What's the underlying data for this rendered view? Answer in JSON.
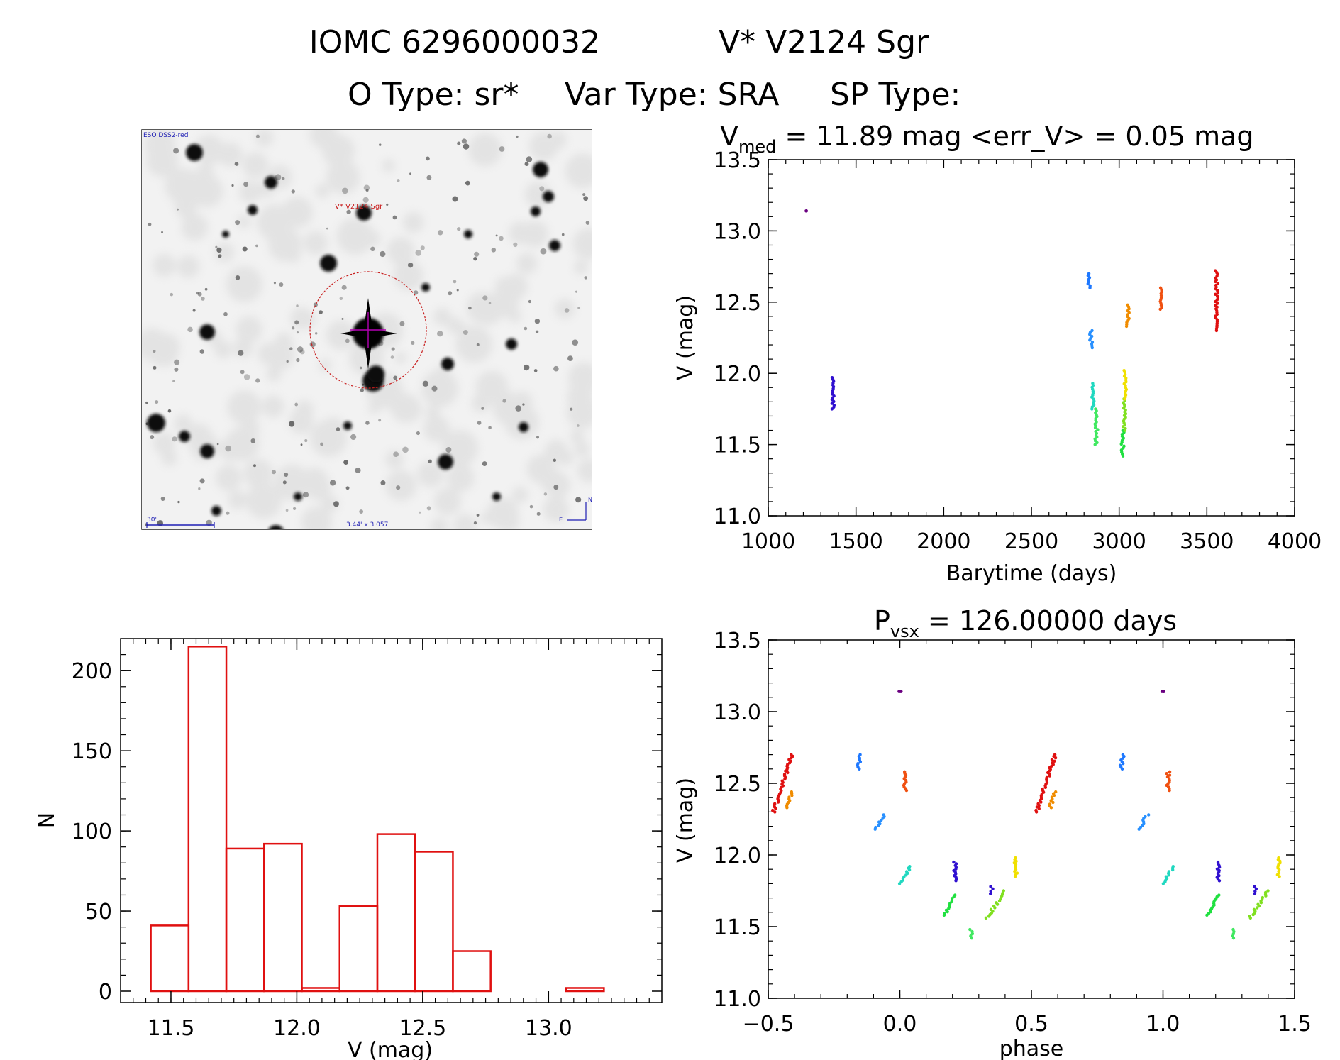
{
  "header": {
    "line1_id": "IOMC 6296000032",
    "line1_name": "V* V2124 Sgr",
    "line2_otype": "O Type: sr*",
    "line2_vartype": "Var Type: SRA",
    "line2_sptype": "SP Type:"
  },
  "finder": {
    "survey_label": "ESO DSS2-red",
    "target_label": "V* V2124 Sgr",
    "scale_label": "30\"",
    "fov_label": "3.44' x 3.057'",
    "north_label": "N",
    "east_label": "E",
    "colors": {
      "circle": "#c81e1e",
      "crosshair": "#b400b4",
      "labels": "#1e1eb4"
    }
  },
  "chart_data": [
    {
      "id": "light_curve",
      "type": "scatter",
      "title_main": "V",
      "title_sub": "med",
      "title_rest": " = 11.89 mag <err_V> = 0.05 mag",
      "xlabel": "Barytime (days)",
      "ylabel": "V (mag)",
      "xlim": [
        1000,
        4000
      ],
      "ylim": [
        13.5,
        11.0
      ],
      "y_inverted": true,
      "x_ticks": [
        1000,
        1500,
        2000,
        2500,
        3000,
        3500,
        4000
      ],
      "y_ticks": [
        "11.0",
        "11.5",
        "12.0",
        "12.5",
        "13.0",
        "13.5"
      ],
      "groups": [
        {
          "color": "#6a0080",
          "x": 1220,
          "y": [
            13.14,
            13.14
          ]
        },
        {
          "color": "#3010d0",
          "x": 1370,
          "y": [
            11.75,
            11.97
          ]
        },
        {
          "color": "#1e78ff",
          "x": 2830,
          "y": [
            12.6,
            12.7
          ]
        },
        {
          "color": "#2890ff",
          "x": 2840,
          "y": [
            12.18,
            12.3
          ]
        },
        {
          "color": "#20d8c0",
          "x": 2850,
          "y": [
            11.75,
            11.93
          ]
        },
        {
          "color": "#40e860",
          "x": 2870,
          "y": [
            11.5,
            11.75
          ]
        },
        {
          "color": "#20e040",
          "x": 3020,
          "y": [
            11.42,
            11.6
          ]
        },
        {
          "color": "#80e020",
          "x": 3030,
          "y": [
            11.6,
            11.82
          ]
        },
        {
          "color": "#f0e000",
          "x": 3035,
          "y": [
            11.82,
            12.02
          ]
        },
        {
          "color": "#f08c00",
          "x": 3050,
          "y": [
            12.33,
            12.48
          ]
        },
        {
          "color": "#f05010",
          "x": 3240,
          "y": [
            12.45,
            12.6
          ]
        },
        {
          "color": "#e01010",
          "x": 3555,
          "y": [
            12.3,
            12.72
          ]
        }
      ]
    },
    {
      "id": "histogram",
      "type": "bar",
      "xlabel": "V (mag)",
      "ylabel": "N",
      "xlim": [
        11.3,
        13.45
      ],
      "ylim": [
        0,
        220
      ],
      "x_ticks": [
        "11.5",
        "12.0",
        "12.5",
        "13.0"
      ],
      "y_ticks": [
        "0",
        "50",
        "100",
        "150",
        "200"
      ],
      "bin_edges": [
        11.42,
        11.57,
        11.72,
        11.87,
        12.02,
        12.17,
        12.32,
        12.47,
        12.62,
        12.77,
        12.92,
        13.07,
        13.22
      ],
      "values": [
        41,
        215,
        89,
        92,
        2,
        53,
        98,
        87,
        25,
        0,
        0,
        2
      ],
      "color": "#e01010"
    },
    {
      "id": "phase_curve",
      "type": "scatter",
      "title_main": "P",
      "title_sub": "vsx",
      "title_rest": " = 126.00000 days",
      "xlabel": "phase",
      "ylabel": "V (mag)",
      "xlim": [
        -0.5,
        1.5
      ],
      "ylim": [
        13.5,
        11.0
      ],
      "y_inverted": true,
      "x_ticks": [
        "−0.5",
        "0.0",
        "0.5",
        "1.0",
        "1.5"
      ],
      "y_ticks": [
        "11.0",
        "11.5",
        "12.0",
        "12.5",
        "13.0",
        "13.5"
      ],
      "groups": [
        {
          "color": "#6a0080",
          "x0": 0.0,
          "x1": 0.0,
          "y0": 13.14,
          "y1": 13.14
        },
        {
          "color": "#e01010",
          "x0": -0.48,
          "x1": -0.41,
          "y0": 12.3,
          "y1": 12.7
        },
        {
          "color": "#f08c00",
          "x0": -0.43,
          "x1": -0.41,
          "y0": 12.33,
          "y1": 12.44
        },
        {
          "color": "#1e78ff",
          "x0": -0.16,
          "x1": -0.15,
          "y0": 12.6,
          "y1": 12.7
        },
        {
          "color": "#2890ff",
          "x0": -0.09,
          "x1": -0.06,
          "y0": 12.18,
          "y1": 12.28
        },
        {
          "color": "#20d8c0",
          "x0": 0.0,
          "x1": 0.04,
          "y0": 11.8,
          "y1": 11.92
        },
        {
          "color": "#f05010",
          "x0": 0.02,
          "x1": 0.02,
          "y0": 12.45,
          "y1": 12.58
        },
        {
          "color": "#20e040",
          "x0": 0.17,
          "x1": 0.21,
          "y0": 11.58,
          "y1": 11.72
        },
        {
          "color": "#3010d0",
          "x0": 0.21,
          "x1": 0.21,
          "y0": 11.82,
          "y1": 11.95
        },
        {
          "color": "#40e860",
          "x0": 0.27,
          "x1": 0.27,
          "y0": 11.42,
          "y1": 11.48
        },
        {
          "color": "#80e020",
          "x0": 0.33,
          "x1": 0.4,
          "y0": 11.56,
          "y1": 11.75
        },
        {
          "color": "#3010d0",
          "x0": 0.35,
          "x1": 0.35,
          "y0": 11.73,
          "y1": 11.78
        },
        {
          "color": "#f0e000",
          "x0": 0.44,
          "x1": 0.44,
          "y0": 11.85,
          "y1": 11.98
        }
      ]
    }
  ]
}
